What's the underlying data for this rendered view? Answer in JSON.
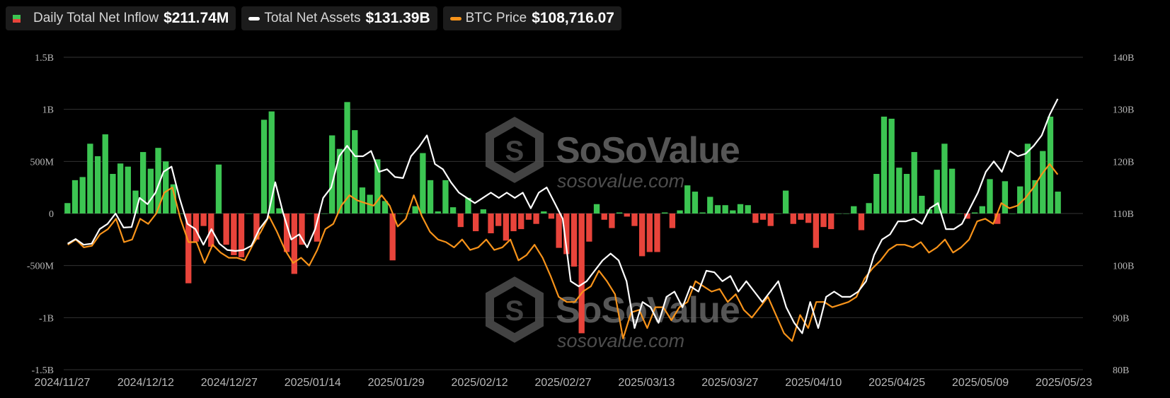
{
  "legend": {
    "inflow": {
      "label": "Daily Total Net Inflow",
      "value": "$211.74M"
    },
    "assets": {
      "label": "Total Net Assets",
      "value": "$131.39B"
    },
    "btc": {
      "label": "BTC Price",
      "value": "$108,716.07"
    }
  },
  "watermark": {
    "title": "SoSoValue",
    "url": "sosovalue.com"
  },
  "colors": {
    "positive": "#3cc552",
    "negative": "#e8443b",
    "assets_line": "#ffffff",
    "btc_line": "#f7931a",
    "grid": "#333333",
    "legend_bg": "#1c1c1c"
  },
  "chart_data": {
    "type": "bar",
    "x_tick_labels": [
      "2024/11/27",
      "2024/12/12",
      "2024/12/27",
      "2025/01/14",
      "2025/01/29",
      "2025/02/12",
      "2025/02/27",
      "2025/03/13",
      "2025/03/27",
      "2025/04/10",
      "2025/04/25",
      "2025/05/09",
      "2025/05/23"
    ],
    "y_left": {
      "ticks": [
        1.5,
        1,
        0.5,
        0,
        -0.5,
        -1,
        -1.5
      ],
      "labels": [
        "1.5B",
        "1B",
        "500M",
        "0",
        "-500M",
        "-1B",
        "-1.5B"
      ],
      "range": [
        -1.5,
        1.5
      ],
      "unit": "USD billions"
    },
    "y_right": {
      "ticks": [
        140,
        130,
        120,
        110,
        100,
        90,
        80
      ],
      "labels": [
        "140B",
        "130B",
        "120B",
        "110B",
        "100B",
        "90B",
        "80B"
      ],
      "range": [
        80,
        140
      ],
      "unit": "USD billions"
    },
    "grid": true,
    "series": [
      {
        "name": "Daily Total Net Inflow",
        "type": "bar",
        "axis": "left",
        "values": [
          0.1,
          0.32,
          0.35,
          0.67,
          0.55,
          0.76,
          0.38,
          0.48,
          0.45,
          0.22,
          0.59,
          0.43,
          0.63,
          0.5,
          0.28,
          0,
          -0.67,
          -0.27,
          -0.12,
          -0.32,
          0.47,
          -0.3,
          -0.4,
          -0.42,
          0,
          -0.25,
          0.9,
          0.98,
          0.05,
          -0.37,
          -0.58,
          -0.3,
          0,
          -0.27,
          0,
          0.75,
          0.62,
          1.07,
          0.8,
          0.25,
          0.18,
          0.52,
          0.12,
          -0.45,
          0,
          0,
          0.07,
          0.58,
          0.32,
          0.02,
          0.32,
          0.06,
          -0.13,
          0.15,
          -0.17,
          0.04,
          -0.19,
          -0.12,
          -0.26,
          -0.17,
          -0.15,
          -0.06,
          -0.1,
          0.02,
          -0.05,
          -0.33,
          -0.39,
          -0.51,
          -1.15,
          -0.27,
          0.09,
          -0.06,
          -0.14,
          0.01,
          -0.03,
          -0.12,
          -0.41,
          -0.37,
          -0.37,
          0.01,
          -0.14,
          0.03,
          0.27,
          0.21,
          0.01,
          0.16,
          0.08,
          0.08,
          0.03,
          0.09,
          0.08,
          -0.09,
          -0.06,
          -0.12,
          0,
          0.22,
          -0.1,
          -0.06,
          -0.09,
          -0.33,
          -0.13,
          -0.15,
          0,
          0,
          0.07,
          -0.16,
          0.1,
          0.38,
          0.93,
          0.91,
          0.44,
          0.38,
          0.59,
          0.17,
          0.04,
          0.42,
          0.67,
          0.43,
          0,
          -0.05,
          0.01,
          0.07,
          0.33,
          -0.1,
          0.31,
          0,
          0.26,
          0.67,
          0.32,
          0.6,
          0.93,
          0.21
        ]
      },
      {
        "name": "Total Net Assets",
        "type": "line",
        "axis": "right",
        "values": [
          104.2,
          105.1,
          104.0,
          104.2,
          107.0,
          108.0,
          110.0,
          107.3,
          107.4,
          113.0,
          111.8,
          114.0,
          118.0,
          119.0,
          113.0,
          108.0,
          107.0,
          104.0,
          107.0,
          104.2,
          103.0,
          102.8,
          103.0,
          103.8,
          107.0,
          109.0,
          116.0,
          110.0,
          105.0,
          106.0,
          103.5,
          107.0,
          113.0,
          115.0,
          121.0,
          123.0,
          121.0,
          121.0,
          122.0,
          118.0,
          118.5,
          117.0,
          116.8,
          121.0,
          122.8,
          125.0,
          119.5,
          118.5,
          116.0,
          114.0,
          113.0,
          112.0,
          113.0,
          114.0,
          113.0,
          114.0,
          113.0,
          114.0,
          111.0,
          114.0,
          115.0,
          112.0,
          109.0,
          97.0,
          96.0,
          97.0,
          99.0,
          101.0,
          102.3,
          101.0,
          97.0,
          88.0,
          93.0,
          92.0,
          89.0,
          94.0,
          95.0,
          92.0,
          96.0,
          95.0,
          99.0,
          98.7,
          97.0,
          98.0,
          95.0,
          97.0,
          95.0,
          93.0,
          95.0,
          97.0,
          92.0,
          89.0,
          87.0,
          93.0,
          88.0,
          94.0,
          95.0,
          94.0,
          94.0,
          95.0,
          97.0,
          102.0,
          105.0,
          106.0,
          108.5,
          108.5,
          109.0,
          108.0,
          111.0,
          112.0,
          107.0,
          107.0,
          108.0,
          111.0,
          114.0,
          118.0,
          120.0,
          118.0,
          122.0,
          121.0,
          121.5,
          123.0,
          125.0,
          129.0,
          132.0
        ]
      },
      {
        "name": "BTC Price",
        "type": "line",
        "axis": "right",
        "values": [
          104.0,
          105.0,
          103.5,
          103.8,
          106.0,
          107.0,
          109.0,
          104.5,
          105.0,
          109.0,
          108.0,
          110.0,
          114.0,
          115.0,
          109.0,
          104.5,
          104.5,
          100.5,
          104.0,
          102.5,
          101.5,
          101.5,
          101.0,
          104.0,
          106.5,
          109.5,
          106.5,
          103.0,
          100.5,
          101.5,
          100.0,
          103.0,
          107.0,
          108.0,
          111.5,
          113.5,
          112.5,
          112.0,
          111.5,
          113.5,
          111.5,
          107.5,
          109.0,
          113.5,
          109.5,
          106.5,
          105.0,
          104.5,
          103.5,
          105.0,
          103.0,
          103.5,
          105.0,
          103.0,
          103.5,
          105.0,
          101.0,
          102.0,
          104.0,
          101.5,
          98.0,
          94.0,
          93.0,
          93.0,
          95.0,
          96.0,
          99.0,
          97.0,
          94.5,
          86.0,
          91.0,
          91.5,
          88.0,
          92.0,
          92.0,
          89.5,
          92.0,
          93.0,
          97.0,
          96.0,
          95.0,
          95.5,
          93.0,
          94.5,
          91.5,
          90.0,
          92.0,
          94.0,
          90.5,
          87.0,
          85.5,
          90.5,
          88.0,
          93.0,
          93.0,
          92.0,
          92.5,
          93.0,
          94.0,
          97.5,
          99.5,
          101.0,
          103.0,
          104.0,
          104.0,
          103.5,
          104.5,
          102.5,
          103.5,
          105.0,
          102.5,
          103.5,
          105.0,
          108.5,
          109.0,
          108.0,
          112.0,
          111.0,
          111.5,
          113.0,
          115.0,
          117.5,
          119.5,
          117.5
        ]
      }
    ]
  }
}
